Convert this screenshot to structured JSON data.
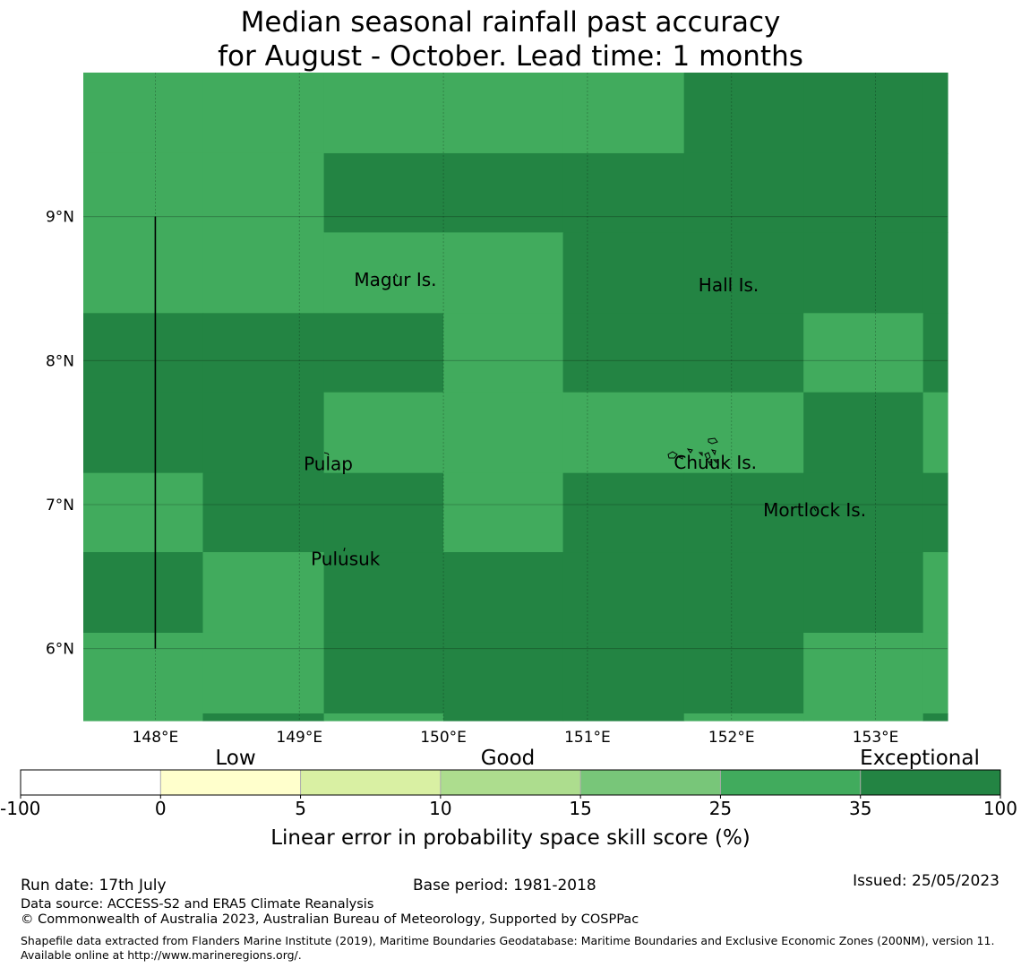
{
  "title": {
    "line1": "Median seasonal rainfall past accuracy",
    "line2": "for August - October. Lead time: 1 months"
  },
  "map": {
    "lon_ticks": [
      "148°E",
      "149°E",
      "150°E",
      "151°E",
      "152°E",
      "153°E"
    ],
    "lon_values": [
      148,
      149,
      150,
      151,
      152,
      153
    ],
    "lat_ticks": [
      "9°N",
      "8°N",
      "7°N",
      "6°N"
    ],
    "lat_values": [
      9,
      8,
      7,
      6
    ],
    "lon_range": [
      147.5,
      153.5
    ],
    "lat_range": [
      5.5,
      10.0
    ],
    "colors": {
      "good": "#41ab5d",
      "exceptional": "#238443"
    },
    "grid_columns_lon": [
      147.5,
      148.33,
      149.17,
      150.0,
      150.83,
      151.67,
      152.5,
      153.33,
      153.5
    ],
    "grid_rows_lat": [
      10.0,
      9.44,
      8.89,
      8.33,
      7.78,
      7.22,
      6.67,
      6.11,
      5.55,
      5.5
    ],
    "cells": [
      [
        "good",
        "good",
        "good",
        "good",
        "good",
        "exceptional",
        "exceptional",
        "exceptional"
      ],
      [
        "good",
        "good",
        "exceptional",
        "exceptional",
        "exceptional",
        "exceptional",
        "exceptional",
        "exceptional"
      ],
      [
        "good",
        "good",
        "good",
        "good",
        "exceptional",
        "exceptional",
        "exceptional",
        "exceptional"
      ],
      [
        "exceptional",
        "exceptional",
        "exceptional",
        "good",
        "exceptional",
        "exceptional",
        "good",
        "exceptional"
      ],
      [
        "exceptional",
        "exceptional",
        "good",
        "good",
        "good",
        "good",
        "exceptional",
        "good"
      ],
      [
        "good",
        "exceptional",
        "exceptional",
        "good",
        "exceptional",
        "exceptional",
        "exceptional",
        "exceptional"
      ],
      [
        "exceptional",
        "good",
        "exceptional",
        "exceptional",
        "exceptional",
        "exceptional",
        "exceptional",
        "good"
      ],
      [
        "good",
        "good",
        "exceptional",
        "exceptional",
        "exceptional",
        "exceptional",
        "good",
        "good"
      ],
      [
        "good",
        "exceptional",
        "good",
        "exceptional",
        "exceptional",
        "good",
        "good",
        "exceptional"
      ]
    ],
    "boundary_line": {
      "lon": 148.0,
      "lat_from": 6.0,
      "lat_to": 9.0
    },
    "places": [
      {
        "name": "Magur Is.",
        "lon": 149.38,
        "lat": 8.52
      },
      {
        "name": "Hall Is.",
        "lon": 151.77,
        "lat": 8.48
      },
      {
        "name": "Pulap",
        "lon": 149.03,
        "lat": 7.24
      },
      {
        "name": "Chuuk Is.",
        "lon": 151.6,
        "lat": 7.25
      },
      {
        "name": "Mortlock Is.",
        "lon": 152.22,
        "lat": 6.92
      },
      {
        "name": "Pulusuk",
        "lon": 149.08,
        "lat": 6.58
      }
    ]
  },
  "colorbar": {
    "categories": [
      "Low",
      "Good",
      "Exceptional"
    ],
    "ticks": [
      "-100",
      "0",
      "5",
      "10",
      "15",
      "25",
      "35",
      "100"
    ],
    "colors": [
      "#ffffff",
      "#ffffcc",
      "#d9f0a3",
      "#addd8e",
      "#78c679",
      "#41ab5d",
      "#238443"
    ],
    "label": "Linear error in probability space skill score (%)"
  },
  "footer": {
    "run_date": "Run date: 17th July",
    "base_period": "Base period: 1981-2018",
    "issued": "Issued: 25/05/2023",
    "data_source": "Data source: ACCESS-S2 and ERA5 Climate Reanalysis",
    "copyright": "© Commonwealth of Australia 2023, Australian Bureau of Meteorology, Supported by COSPPac",
    "shapefile": "Shapefile data extracted from Flanders Marine Institute (2019), Maritime Boundaries Geodatabase: Maritime Boundaries and Exclusive Economic Zones (200NM), version 11. Available online at http://www.marineregions.org/."
  }
}
